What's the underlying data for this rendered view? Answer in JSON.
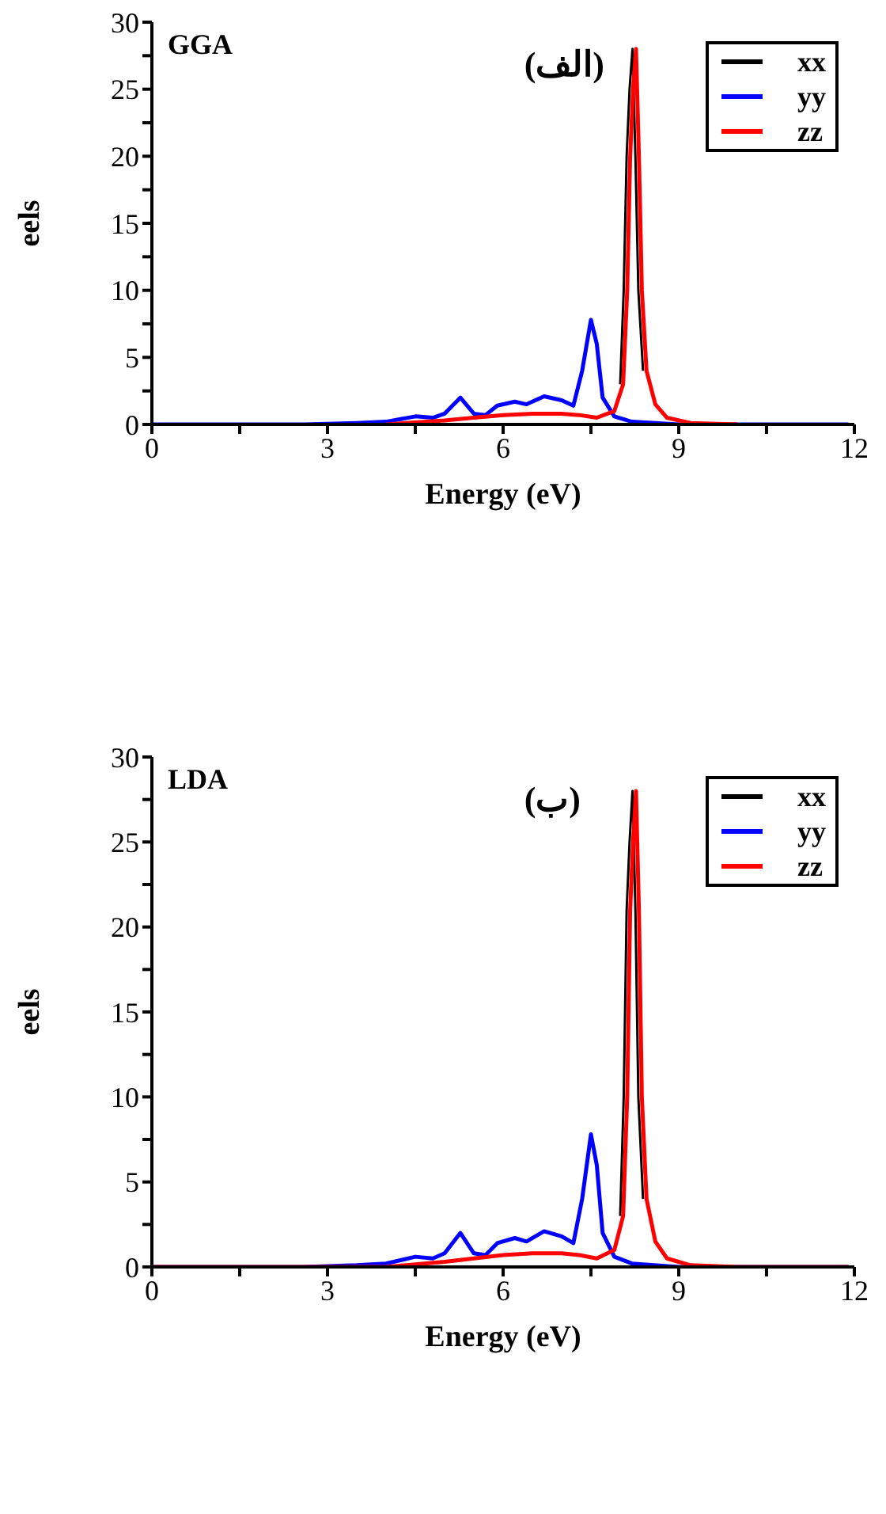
{
  "chart_data": [
    {
      "type": "line",
      "xlabel": "Energy (eV)",
      "ylabel": "eels",
      "annotations": [
        "GGA",
        "(الف)"
      ],
      "xlim": [
        0,
        12
      ],
      "ylim": [
        0,
        30
      ],
      "xticks": [
        0,
        {
          "value": 1.5,
          "label": null
        },
        3,
        {
          "value": 4.5,
          "label": null
        },
        6,
        {
          "value": 7.5,
          "label": null
        },
        9,
        {
          "value": 10.5,
          "label": null
        },
        12
      ],
      "yticks": [
        0,
        {
          "value": 2.5,
          "label": null
        },
        5,
        {
          "value": 7.5,
          "label": null
        },
        10,
        {
          "value": 12.5,
          "label": null
        },
        15,
        {
          "value": 17.5,
          "label": null
        },
        20,
        {
          "value": 22.5,
          "label": null
        },
        25,
        {
          "value": 27.5,
          "label": null
        },
        30
      ],
      "legend": "top right",
      "grid": false,
      "marker": "none",
      "line_style": "solid",
      "series": [
        {
          "name": "xx",
          "color": "#000000",
          "x": [
            8.0,
            8.06,
            8.11,
            8.16,
            8.21,
            8.26,
            8.31,
            8.39
          ],
          "values": [
            3,
            10,
            20,
            25,
            28,
            20,
            10,
            4
          ]
        },
        {
          "name": "yy",
          "color": "#0000ff",
          "x": [
            0,
            2.6,
            3.5,
            4,
            4.5,
            4.8,
            5,
            5.27,
            5.5,
            5.7,
            5.9,
            6.2,
            6.4,
            6.7,
            7,
            7.2,
            7.35,
            7.5,
            7.6,
            7.7,
            7.9,
            8.2,
            9,
            11.9
          ],
          "values": [
            0,
            0,
            0.1,
            0.2,
            0.6,
            0.5,
            0.8,
            2,
            0.8,
            0.7,
            1.4,
            1.7,
            1.5,
            2.1,
            1.8,
            1.4,
            4,
            7.8,
            6,
            2,
            0.6,
            0.2,
            0,
            0
          ]
        },
        {
          "name": "zz",
          "color": "#ff0000",
          "x": [
            4,
            5,
            5.5,
            6,
            6.5,
            7,
            7.3,
            7.6,
            7.9,
            8.05,
            8.12,
            8.17,
            8.22,
            8.27,
            8.32,
            8.37,
            8.45,
            8.6,
            8.8,
            9.2,
            10
          ],
          "values": [
            0,
            0.3,
            0.5,
            0.7,
            0.8,
            0.8,
            0.7,
            0.5,
            1,
            3,
            10,
            20,
            25,
            28,
            20,
            10,
            4,
            1.5,
            0.5,
            0.1,
            0
          ]
        }
      ]
    },
    {
      "type": "line",
      "xlabel": "Energy (eV)",
      "ylabel": "eels",
      "annotations": [
        "LDA",
        "(ب)"
      ],
      "xlim": [
        0,
        12
      ],
      "ylim": [
        0,
        30
      ],
      "xticks": [
        0,
        {
          "value": 1.5,
          "label": null
        },
        3,
        {
          "value": 4.5,
          "label": null
        },
        6,
        {
          "value": 7.5,
          "label": null
        },
        9,
        {
          "value": 10.5,
          "label": null
        },
        12
      ],
      "yticks": [
        0,
        {
          "value": 2.5,
          "label": null
        },
        5,
        {
          "value": 7.5,
          "label": null
        },
        10,
        {
          "value": 12.5,
          "label": null
        },
        15,
        {
          "value": 17.5,
          "label": null
        },
        20,
        {
          "value": 22.5,
          "label": null
        },
        25,
        {
          "value": 27.5,
          "label": null
        },
        30
      ],
      "legend": "top right",
      "grid": false,
      "marker": "none",
      "line_style": "solid",
      "series": [
        {
          "name": "xx",
          "color": "#000000",
          "x": [
            8.0,
            8.06,
            8.11,
            8.16,
            8.21,
            8.26,
            8.31,
            8.39
          ],
          "values": [
            3,
            10,
            21,
            25,
            28,
            21,
            10,
            4
          ]
        },
        {
          "name": "yy",
          "color": "#0000ff",
          "x": [
            0,
            2.6,
            3.5,
            4,
            4.5,
            4.8,
            5,
            5.27,
            5.5,
            5.7,
            5.9,
            6.2,
            6.4,
            6.7,
            7,
            7.2,
            7.35,
            7.5,
            7.6,
            7.7,
            7.9,
            8.2,
            9,
            11.9
          ],
          "values": [
            0,
            0,
            0.1,
            0.2,
            0.6,
            0.5,
            0.8,
            2,
            0.8,
            0.7,
            1.4,
            1.7,
            1.5,
            2.1,
            1.8,
            1.4,
            4,
            7.8,
            6,
            2,
            0.6,
            0.2,
            0,
            0
          ]
        },
        {
          "name": "zz",
          "color": "#ff0000",
          "x": [
            0,
            2.6,
            4,
            5,
            5.5,
            6,
            6.5,
            7,
            7.3,
            7.6,
            7.9,
            8.05,
            8.12,
            8.17,
            8.22,
            8.27,
            8.32,
            8.37,
            8.45,
            8.6,
            8.8,
            9.2,
            10,
            11.9
          ],
          "values": [
            0,
            0,
            0,
            0.3,
            0.5,
            0.7,
            0.8,
            0.8,
            0.7,
            0.5,
            1,
            3,
            10,
            21,
            25,
            28,
            21,
            10,
            4,
            1.5,
            0.5,
            0.1,
            0,
            0
          ]
        }
      ]
    }
  ]
}
